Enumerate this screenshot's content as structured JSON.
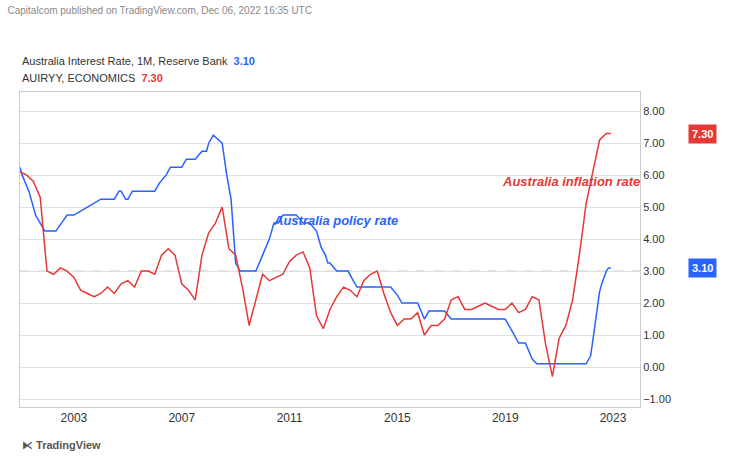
{
  "chart_data": {
    "type": "line",
    "title": "Capitalcom published on TradingView.com, Dec 06, 2022 16:35 UTC",
    "footer": "⧔ TradingView",
    "xlim": [
      2001.0,
      2024.0
    ],
    "xticks": [
      2003,
      2007,
      2011,
      2015,
      2019,
      2023
    ],
    "ylim": [
      -1.25,
      8.6
    ],
    "yticks": [
      {
        "value": 8.0,
        "label": "8.00"
      },
      {
        "value": 7.0,
        "label": "7.00"
      },
      {
        "value": 6.0,
        "label": "6.00"
      },
      {
        "value": 5.0,
        "label": "5.00"
      },
      {
        "value": 4.0,
        "label": "4.00"
      },
      {
        "value": 3.0,
        "label": "3.00"
      },
      {
        "value": 2.0,
        "label": "2.00"
      },
      {
        "value": 1.0,
        "label": "1.00"
      },
      {
        "value": 0.0,
        "label": "0.00"
      },
      {
        "value": -1.0,
        "label": "−1.00"
      }
    ],
    "grid": true,
    "reference_line": 3.0,
    "annotations": [
      {
        "text": "Australia policy rate",
        "x": 2010.3,
        "y": 4.3,
        "color": "#2962ff"
      },
      {
        "text": "Australia inflation rate",
        "x": 2018.8,
        "y": 5.5,
        "color": "#e53935"
      }
    ],
    "series": [
      {
        "name": "Australia Interest Rate, 1M, Reserve Bank",
        "color": "#2962ff",
        "badge": {
          "value": 3.1,
          "label": "3.10"
        },
        "x": [
          2001.0,
          2001.08,
          2001.33,
          2001.42,
          2001.58,
          2001.75,
          2001.92,
          2002.0,
          2002.33,
          2002.75,
          2003.0,
          2003.5,
          2004.0,
          2004.25,
          2004.5,
          2004.67,
          2004.75,
          2004.92,
          2005.0,
          2005.17,
          2005.25,
          2005.75,
          2006.0,
          2006.17,
          2006.42,
          2006.58,
          2006.75,
          2007.0,
          2007.17,
          2007.5,
          2007.75,
          2007.92,
          2008.0,
          2008.17,
          2008.5,
          2008.58,
          2008.67,
          2008.83,
          2008.92,
          2009.0,
          2009.17,
          2009.25,
          2009.33,
          2009.5,
          2009.75,
          2010.0,
          2010.25,
          2010.42,
          2010.5,
          2010.58,
          2010.75,
          2011.0,
          2011.25,
          2011.5,
          2011.75,
          2012.0,
          2012.17,
          2012.33,
          2012.42,
          2012.5,
          2012.75,
          2013.0,
          2013.17,
          2013.33,
          2013.5,
          2013.75,
          2014.0,
          2014.25,
          2014.5,
          2014.75,
          2015.0,
          2015.17,
          2015.5,
          2015.75,
          2016.0,
          2016.17,
          2016.5,
          2016.75,
          2017.0,
          2017.25,
          2017.5,
          2017.75,
          2018.0,
          2018.25,
          2018.5,
          2018.75,
          2019.0,
          2019.17,
          2019.5,
          2019.75,
          2020.0,
          2020.17,
          2020.25,
          2020.5,
          2020.75,
          2021.0,
          2021.25,
          2021.5,
          2021.75,
          2022.0,
          2022.17,
          2022.25,
          2022.33,
          2022.42,
          2022.5,
          2022.58,
          2022.67,
          2022.75,
          2022.83,
          2022.92
        ],
        "values": [
          6.25,
          6.0,
          5.5,
          5.25,
          4.75,
          4.5,
          4.25,
          4.25,
          4.25,
          4.75,
          4.75,
          5.0,
          5.25,
          5.25,
          5.25,
          5.5,
          5.5,
          5.25,
          5.25,
          5.5,
          5.5,
          5.5,
          5.5,
          5.75,
          6.0,
          6.25,
          6.25,
          6.25,
          6.5,
          6.5,
          6.75,
          6.75,
          7.0,
          7.25,
          7.0,
          6.5,
          6.0,
          5.25,
          4.25,
          3.25,
          3.0,
          3.0,
          3.0,
          3.0,
          3.0,
          3.5,
          4.0,
          4.5,
          4.5,
          4.5,
          4.75,
          4.75,
          4.75,
          4.5,
          4.5,
          4.25,
          3.75,
          3.5,
          3.25,
          3.25,
          3.0,
          3.0,
          3.0,
          2.75,
          2.5,
          2.5,
          2.5,
          2.5,
          2.5,
          2.5,
          2.25,
          2.0,
          2.0,
          2.0,
          1.5,
          1.75,
          1.75,
          1.75,
          1.5,
          1.5,
          1.5,
          1.5,
          1.5,
          1.5,
          1.5,
          1.5,
          1.5,
          1.25,
          0.75,
          0.75,
          0.25,
          0.1,
          0.1,
          0.1,
          0.1,
          0.1,
          0.1,
          0.1,
          0.1,
          0.1,
          0.35,
          0.85,
          1.35,
          1.85,
          2.35,
          2.6,
          2.85,
          3.0,
          3.1,
          3.1
        ]
      },
      {
        "name": "AUIRYY, ECONOMICS",
        "color": "#e53935",
        "badge": {
          "value": 7.3,
          "label": "7.30"
        },
        "x": [
          2001.0,
          2001.25,
          2001.5,
          2001.75,
          2002.0,
          2002.25,
          2002.5,
          2002.75,
          2003.0,
          2003.25,
          2003.5,
          2003.75,
          2004.0,
          2004.25,
          2004.5,
          2004.75,
          2005.0,
          2005.25,
          2005.5,
          2005.75,
          2006.0,
          2006.25,
          2006.5,
          2006.75,
          2007.0,
          2007.25,
          2007.5,
          2007.75,
          2008.0,
          2008.25,
          2008.5,
          2008.75,
          2009.0,
          2009.25,
          2009.5,
          2009.75,
          2010.0,
          2010.25,
          2010.5,
          2010.75,
          2011.0,
          2011.25,
          2011.5,
          2011.75,
          2012.0,
          2012.25,
          2012.5,
          2012.75,
          2013.0,
          2013.25,
          2013.5,
          2013.75,
          2014.0,
          2014.25,
          2014.5,
          2014.75,
          2015.0,
          2015.25,
          2015.5,
          2015.75,
          2016.0,
          2016.25,
          2016.5,
          2016.75,
          2017.0,
          2017.25,
          2017.5,
          2017.75,
          2018.0,
          2018.25,
          2018.5,
          2018.75,
          2019.0,
          2019.25,
          2019.5,
          2019.75,
          2020.0,
          2020.25,
          2020.5,
          2020.75,
          2021.0,
          2021.25,
          2021.5,
          2021.75,
          2022.0,
          2022.25,
          2022.5,
          2022.75,
          2022.92
        ],
        "values": [
          6.1,
          6.0,
          5.8,
          5.3,
          3.0,
          2.9,
          3.1,
          3.0,
          2.8,
          2.4,
          2.3,
          2.2,
          2.3,
          2.5,
          2.3,
          2.6,
          2.7,
          2.5,
          3.0,
          3.0,
          2.9,
          3.5,
          3.7,
          3.5,
          2.6,
          2.4,
          2.1,
          3.5,
          4.2,
          4.5,
          5.0,
          3.7,
          3.5,
          2.5,
          1.3,
          2.1,
          2.9,
          2.7,
          2.8,
          2.9,
          3.3,
          3.5,
          3.6,
          3.1,
          1.6,
          1.2,
          1.8,
          2.2,
          2.5,
          2.4,
          2.2,
          2.7,
          2.9,
          3.0,
          2.3,
          1.7,
          1.3,
          1.5,
          1.5,
          1.7,
          1.0,
          1.3,
          1.3,
          1.5,
          2.1,
          2.2,
          1.8,
          1.8,
          1.9,
          2.0,
          1.9,
          1.8,
          1.8,
          2.0,
          1.7,
          1.8,
          2.2,
          2.1,
          0.7,
          -0.3,
          0.9,
          1.3,
          2.1,
          3.5,
          5.1,
          6.1,
          7.1,
          7.3,
          7.3
        ]
      }
    ]
  }
}
